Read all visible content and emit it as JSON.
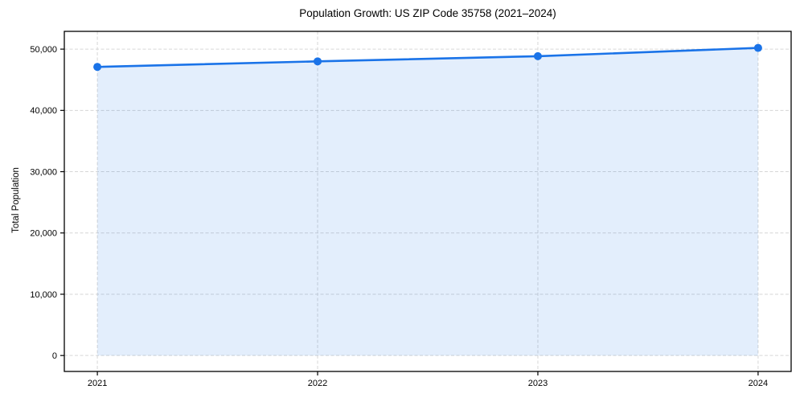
{
  "chart_data": {
    "type": "area",
    "title": "Population Growth: US ZIP Code 35758 (2021–2024)",
    "xlabel": "",
    "ylabel": "Total Population",
    "x": [
      2021,
      2022,
      2023,
      2024
    ],
    "series": [
      {
        "name": "Total Population",
        "values": [
          47100,
          48000,
          48850,
          50200
        ]
      }
    ],
    "xtick_labels": [
      "2021",
      "2022",
      "2023",
      "2024"
    ],
    "yticks": [
      0,
      10000,
      20000,
      30000,
      40000,
      50000
    ],
    "ytick_labels": [
      "0",
      "10,000",
      "20,000",
      "30,000",
      "40,000",
      "50,000"
    ],
    "xlim": [
      2020.85,
      2024.15
    ],
    "ylim": [
      -2600,
      52900
    ],
    "grid": "both, dashed",
    "legend": "none",
    "fill_to": 0,
    "colors": {
      "line": "#1a73e8",
      "marker": "#1a73e8",
      "fill": "rgba(26,115,232,0.12)",
      "grid": "#d6d6d6",
      "spine": "#000000",
      "text": "#000000",
      "background": "#ffffff"
    }
  }
}
